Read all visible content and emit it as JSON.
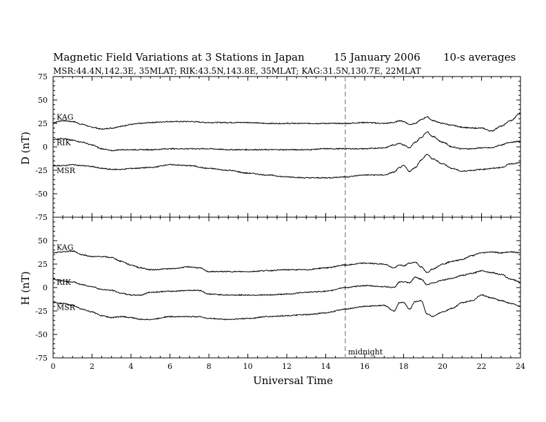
{
  "header": {
    "title": "Magnetic Field Variations at 3 Stations in Japan",
    "date": "15 January 2006",
    "averaging": "10-s averages",
    "stations": "MSR:44.4N,142.3E, 35MLAT;  RIK:43.5N,143.8E, 35MLAT;  KAG:31.5N,130.7E, 22MLAT"
  },
  "chart_data": [
    {
      "type": "line",
      "ylabel": "D (nT)",
      "ylim": [
        -75,
        75
      ],
      "yticks": [
        -75,
        -50,
        -25,
        0,
        25,
        50,
        75
      ],
      "xlim": [
        0,
        24
      ],
      "grid": false,
      "series": [
        {
          "name": "KAG",
          "x": [
            0,
            0.5,
            1,
            1.5,
            2,
            2.5,
            3,
            3.5,
            4,
            4.5,
            5,
            6,
            7,
            8,
            9,
            10,
            11,
            12,
            13,
            14,
            15,
            16,
            17,
            17.5,
            17.8,
            18,
            18.3,
            18.6,
            18.9,
            19.2,
            19.5,
            20,
            20.5,
            21,
            21.5,
            22,
            22.5,
            23,
            23.5,
            24
          ],
          "values": [
            26,
            28,
            27,
            24,
            21,
            19,
            20,
            22,
            24,
            25,
            26,
            27,
            27,
            26,
            26,
            26,
            25,
            25,
            25,
            25,
            25,
            26,
            25,
            26,
            28,
            27,
            24,
            25,
            29,
            32,
            28,
            25,
            23,
            21,
            20,
            20,
            17,
            22,
            28,
            36
          ]
        },
        {
          "name": "RIK",
          "x": [
            0,
            0.5,
            1,
            1.5,
            2,
            2.5,
            3,
            3.5,
            4,
            5,
            6,
            7,
            8,
            9,
            10,
            11,
            12,
            13,
            14,
            15,
            16,
            17,
            17.5,
            17.8,
            18,
            18.3,
            18.6,
            18.9,
            19.2,
            19.5,
            20,
            20.5,
            21,
            21.5,
            22,
            22.5,
            23,
            23.5,
            24
          ],
          "values": [
            8,
            9,
            7,
            5,
            2,
            -2,
            -4,
            -3,
            -3,
            -3,
            -2,
            -2,
            -2,
            -3,
            -3,
            -3,
            -3,
            -3,
            -2,
            -2,
            -2,
            -1,
            2,
            4,
            2,
            -1,
            5,
            10,
            16,
            11,
            5,
            0,
            -2,
            -2,
            -1,
            -1,
            2,
            5,
            6
          ]
        },
        {
          "name": "MSR",
          "x": [
            0,
            0.5,
            1,
            1.5,
            2,
            2.5,
            3,
            3.5,
            4,
            5,
            6,
            7,
            8,
            9,
            10,
            11,
            12,
            13,
            14,
            15,
            16,
            17,
            17.5,
            17.8,
            18,
            18.3,
            18.6,
            18.9,
            19.2,
            19.5,
            20,
            20.5,
            21,
            21.5,
            22,
            22.5,
            23,
            23.5,
            24
          ],
          "values": [
            -20,
            -20,
            -19,
            -20,
            -21,
            -23,
            -24,
            -24,
            -23,
            -22,
            -19,
            -20,
            -23,
            -25,
            -28,
            -30,
            -32,
            -33,
            -33,
            -32,
            -30,
            -30,
            -27,
            -22,
            -20,
            -26,
            -22,
            -14,
            -8,
            -13,
            -18,
            -23,
            -26,
            -25,
            -24,
            -23,
            -22,
            -18,
            -17
          ]
        }
      ],
      "annotations": [
        {
          "x": 15,
          "label": "midnight",
          "style": "dashed-vertical"
        }
      ]
    },
    {
      "type": "line",
      "ylabel": "H (nT)",
      "xlabel": "Universal Time",
      "ylim": [
        -75,
        75
      ],
      "yticks": [
        -75,
        -50,
        -25,
        0,
        25,
        50,
        75
      ],
      "xlim": [
        0,
        24
      ],
      "xticks": [
        0,
        2,
        4,
        6,
        8,
        10,
        12,
        14,
        16,
        18,
        20,
        22,
        24
      ],
      "grid": false,
      "series": [
        {
          "name": "KAG",
          "x": [
            0,
            0.5,
            1,
            1.5,
            2,
            2.5,
            3,
            3.5,
            4,
            4.5,
            5,
            6,
            7,
            7.5,
            8,
            9,
            10,
            11,
            12,
            13,
            14,
            15,
            16,
            17,
            17.5,
            17.8,
            18,
            18.3,
            18.6,
            18.9,
            19.2,
            19.5,
            20,
            20.5,
            21,
            21.5,
            22,
            22.5,
            23,
            23.5,
            24
          ],
          "values": [
            37,
            38,
            39,
            35,
            33,
            33,
            32,
            28,
            24,
            21,
            19,
            20,
            22,
            21,
            17,
            17,
            17,
            18,
            19,
            19,
            21,
            24,
            26,
            25,
            21,
            24,
            23,
            26,
            27,
            22,
            16,
            20,
            25,
            28,
            30,
            34,
            37,
            38,
            37,
            38,
            37
          ]
        },
        {
          "name": "RIK",
          "x": [
            0,
            0.5,
            1,
            1.5,
            2,
            2.5,
            3,
            3.5,
            4,
            4.5,
            5,
            6,
            7,
            7.5,
            8,
            9,
            10,
            11,
            12,
            13,
            14,
            15,
            16,
            17,
            17.5,
            17.8,
            18,
            18.3,
            18.6,
            18.9,
            19.2,
            19.5,
            20,
            20.5,
            21,
            21.5,
            22,
            22.5,
            23,
            23.5,
            24
          ],
          "values": [
            9,
            7,
            6,
            3,
            1,
            -2,
            -3,
            -6,
            -8,
            -8,
            -5,
            -4,
            -3,
            -3,
            -7,
            -8,
            -8,
            -8,
            -7,
            -5,
            -4,
            0,
            2,
            1,
            0,
            6,
            6,
            5,
            11,
            9,
            3,
            5,
            8,
            10,
            13,
            15,
            18,
            16,
            14,
            9,
            6
          ]
        },
        {
          "name": "MSR",
          "x": [
            0,
            0.5,
            1,
            1.5,
            2,
            2.5,
            3,
            3.5,
            4,
            4.5,
            5,
            6,
            7,
            7.5,
            8,
            9,
            10,
            11,
            12,
            13,
            14,
            15,
            16,
            17,
            17.5,
            17.8,
            18,
            18.3,
            18.6,
            18.9,
            19.2,
            19.5,
            20,
            20.5,
            21,
            21.5,
            22,
            22.5,
            23,
            23.5,
            24
          ],
          "values": [
            -16,
            -17,
            -19,
            -23,
            -26,
            -30,
            -32,
            -31,
            -32,
            -34,
            -34,
            -31,
            -31,
            -31,
            -33,
            -34,
            -33,
            -31,
            -30,
            -29,
            -27,
            -23,
            -20,
            -19,
            -25,
            -16,
            -16,
            -23,
            -15,
            -14,
            -28,
            -31,
            -26,
            -22,
            -16,
            -14,
            -8,
            -11,
            -14,
            -17,
            -20
          ]
        }
      ],
      "annotations": [
        {
          "x": 15,
          "label": "midnight",
          "style": "dashed-vertical"
        }
      ]
    }
  ]
}
